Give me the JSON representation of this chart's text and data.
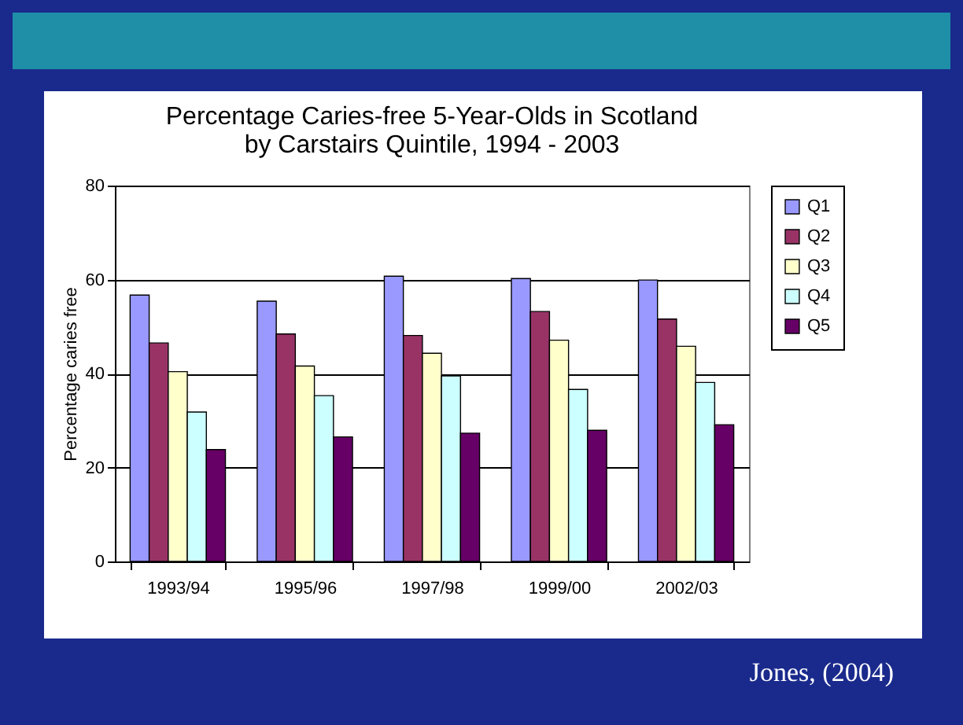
{
  "chart_data": {
    "type": "bar",
    "title": "Percentage Caries-free 5-Year-Olds in Scotland\nby Carstairs Quintile, 1994 - 2003",
    "ylabel": "Percentage caries free",
    "categories": [
      "1993/94",
      "1995/96",
      "1997/98",
      "1999/00",
      "2002/03"
    ],
    "series": [
      {
        "name": "Q1",
        "color": "#9999ff",
        "values": [
          56.7,
          55.4,
          60.7,
          60.2,
          59.9
        ]
      },
      {
        "name": "Q2",
        "color": "#993366",
        "values": [
          46.5,
          48.4,
          48.1,
          53.2,
          51.6
        ]
      },
      {
        "name": "Q3",
        "color": "#ffffcc",
        "values": [
          40.4,
          41.6,
          44.3,
          47.1,
          45.8
        ]
      },
      {
        "name": "Q4",
        "color": "#ccffff",
        "values": [
          31.8,
          35.3,
          39.5,
          36.6,
          38.1
        ]
      },
      {
        "name": "Q5",
        "color": "#660066",
        "values": [
          23.8,
          26.5,
          27.3,
          27.9,
          29.1
        ]
      }
    ],
    "ylim": [
      0,
      80
    ],
    "yticks": [
      0,
      20,
      40,
      60,
      80
    ],
    "grid": "y",
    "legend": "right",
    "annotations": [
      "Jones, (2004)"
    ]
  }
}
